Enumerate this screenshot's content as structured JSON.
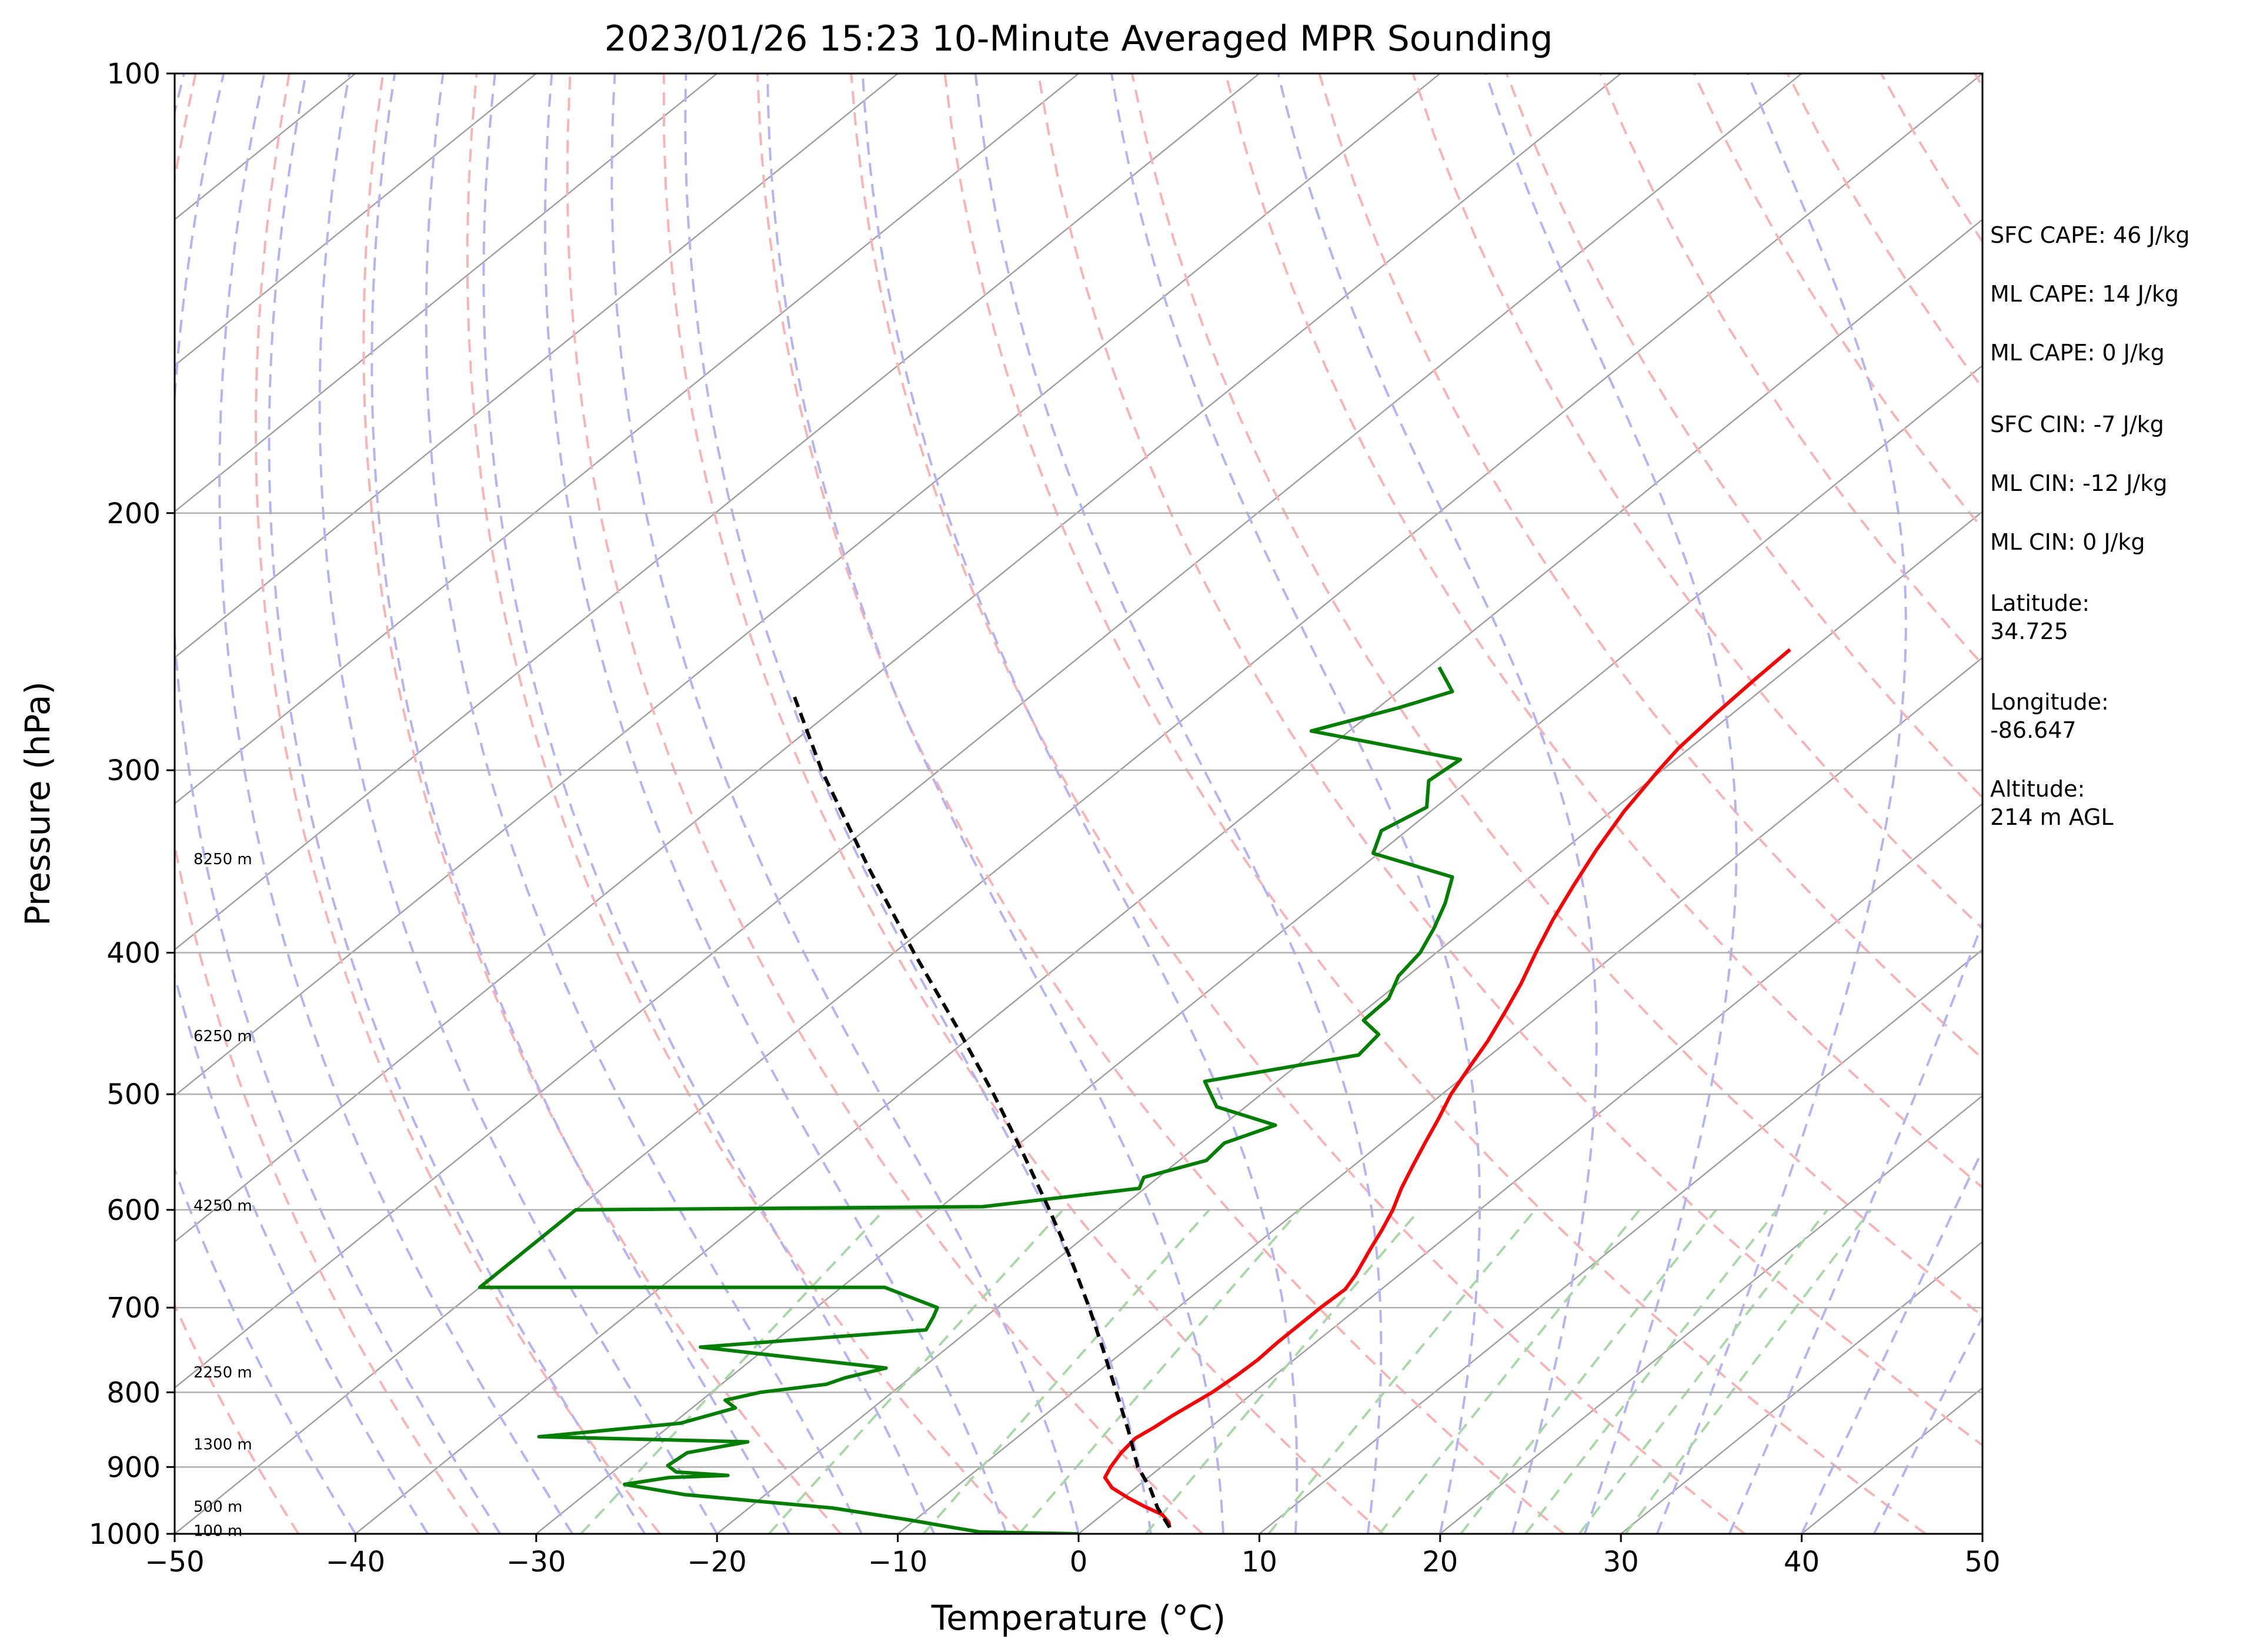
{
  "chart_data": {
    "type": "line",
    "title": "2023/01/26 15:23 10-Minute Averaged MPR Sounding",
    "xlabel": "Temperature (°C)",
    "ylabel": "Pressure (hPa)",
    "xlim": [
      -50,
      50
    ],
    "ylim": [
      1000,
      100
    ],
    "y_scale": "log",
    "skew": "skew-T",
    "x_ticks": [
      "−50",
      "−40",
      "−30",
      "−20",
      "−10",
      "0",
      "10",
      "20",
      "30",
      "40",
      "50"
    ],
    "y_ticks": [
      "100",
      "200",
      "300",
      "400",
      "500",
      "600",
      "700",
      "800",
      "900",
      "1000"
    ],
    "grid": true,
    "series": [
      {
        "key": "temperature",
        "color": "#ff0000",
        "points": [
          [
            990,
            4.6
          ],
          [
            982,
            4.2
          ],
          [
            970,
            3.3
          ],
          [
            958,
            1.8
          ],
          [
            945,
            0.3
          ],
          [
            930,
            -1.3
          ],
          [
            915,
            -2.4
          ],
          [
            900,
            -2.8
          ],
          [
            880,
            -3.2
          ],
          [
            860,
            -3.4
          ],
          [
            845,
            -3.1
          ],
          [
            830,
            -2.9
          ],
          [
            815,
            -2.6
          ],
          [
            800,
            -2.3
          ],
          [
            780,
            -2.1
          ],
          [
            760,
            -2.0
          ],
          [
            740,
            -2.1
          ],
          [
            720,
            -2.1
          ],
          [
            700,
            -2.1
          ],
          [
            680,
            -2.0
          ],
          [
            665,
            -2.4
          ],
          [
            640,
            -3.3
          ],
          [
            620,
            -4.0
          ],
          [
            600,
            -4.8
          ],
          [
            580,
            -5.8
          ],
          [
            560,
            -6.7
          ],
          [
            540,
            -7.6
          ],
          [
            520,
            -8.5
          ],
          [
            500,
            -9.5
          ],
          [
            480,
            -10.3
          ],
          [
            460,
            -11.1
          ],
          [
            440,
            -12.1
          ],
          [
            420,
            -13.2
          ],
          [
            400,
            -14.5
          ],
          [
            380,
            -15.8
          ],
          [
            360,
            -17.0
          ],
          [
            340,
            -18.2
          ],
          [
            320,
            -19.3
          ],
          [
            300,
            -20.2
          ],
          [
            290,
            -20.6
          ],
          [
            275,
            -20.9
          ],
          [
            260,
            -21.1
          ],
          [
            248,
            -21.2
          ]
        ]
      },
      {
        "key": "dewpoint",
        "color": "#008000",
        "points": [
          [
            1000,
            0
          ],
          [
            997,
            -5.6
          ],
          [
            990,
            -7.4
          ],
          [
            978,
            -10.4
          ],
          [
            960,
            -15.4
          ],
          [
            940,
            -24.5
          ],
          [
            925,
            -28.5
          ],
          [
            915,
            -26.5
          ],
          [
            912,
            -23.4
          ],
          [
            907,
            -26.5
          ],
          [
            898,
            -27.4
          ],
          [
            880,
            -27.2
          ],
          [
            865,
            -24.6
          ],
          [
            858,
            -36.5
          ],
          [
            840,
            -29.6
          ],
          [
            820,
            -27.6
          ],
          [
            810,
            -28.7
          ],
          [
            800,
            -27.3
          ],
          [
            790,
            -24.2
          ],
          [
            782,
            -23.6
          ],
          [
            770,
            -22.0
          ],
          [
            745,
            -33.7
          ],
          [
            725,
            -22.4
          ],
          [
            710,
            -22.9
          ],
          [
            700,
            -23.3
          ],
          [
            678,
            -27.6
          ],
          [
            678,
            -50.0
          ],
          [
            600,
            -50.0
          ],
          [
            597,
            -27.7
          ],
          [
            580,
            -20.3
          ],
          [
            570,
            -20.8
          ],
          [
            555,
            -18.5
          ],
          [
            540,
            -18.7
          ],
          [
            525,
            -17.1
          ],
          [
            510,
            -21.6
          ],
          [
            490,
            -24.0
          ],
          [
            470,
            -17.3
          ],
          [
            455,
            -17.6
          ],
          [
            445,
            -19.4
          ],
          [
            430,
            -19.5
          ],
          [
            415,
            -20.5
          ],
          [
            400,
            -20.9
          ],
          [
            385,
            -21.8
          ],
          [
            370,
            -22.9
          ],
          [
            355,
            -24.3
          ],
          [
            342,
            -30.3
          ],
          [
            330,
            -31.4
          ],
          [
            318,
            -30.5
          ],
          [
            305,
            -32.2
          ],
          [
            295,
            -31.9
          ],
          [
            282,
            -42.1
          ],
          [
            272,
            -38.9
          ],
          [
            265,
            -37.0
          ],
          [
            255,
            -39.4
          ]
        ]
      },
      {
        "key": "parcel",
        "color": "#000000",
        "dashed": true,
        "points": [
          [
            990,
            4.6
          ],
          [
            960,
            2.6
          ],
          [
            930,
            0.8
          ],
          [
            900,
            -1.3
          ],
          [
            850,
            -4.3
          ],
          [
            800,
            -7.6
          ],
          [
            750,
            -11.1
          ],
          [
            700,
            -14.9
          ],
          [
            650,
            -19.1
          ],
          [
            600,
            -23.8
          ],
          [
            550,
            -29.0
          ],
          [
            500,
            -34.8
          ],
          [
            450,
            -41.4
          ],
          [
            400,
            -48.9
          ],
          [
            350,
            -57.2
          ],
          [
            300,
            -66.5
          ],
          [
            265,
            -73.5
          ]
        ]
      }
    ],
    "height_labels": [
      {
        "p": 995,
        "text": "100 m"
      },
      {
        "p": 958,
        "text": "500 m"
      },
      {
        "p": 868,
        "text": "1300 m"
      },
      {
        "p": 775,
        "text": "2250 m"
      },
      {
        "p": 596,
        "text": "4250 m"
      },
      {
        "p": 456,
        "text": "6250 m"
      },
      {
        "p": 345,
        "text": "8250 m"
      }
    ],
    "reference_lines": {
      "isotherm_color": "#a0a0a0",
      "dry_adiabat_color": "#f8b4b4",
      "moist_adiabat_color": "#b4b4f4",
      "mixing_ratio_color": "#a8d8a8"
    },
    "annotations": [
      "SFC CAPE: 46 J/kg",
      "ML CAPE: 14 J/kg",
      "ML CAPE: 0 J/kg",
      "SFC CIN: -7 J/kg",
      "ML CIN: -12 J/kg",
      "ML CIN: 0 J/kg",
      "Latitude:\n34.725",
      "Longitude:\n-86.647",
      "Altitude:\n214 m AGL"
    ]
  }
}
